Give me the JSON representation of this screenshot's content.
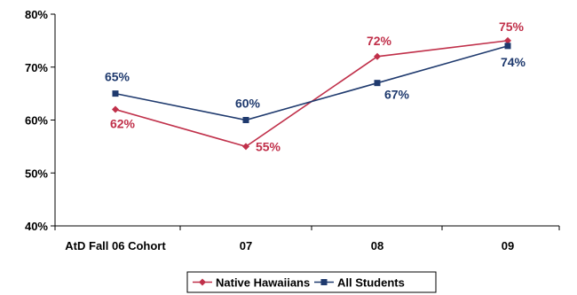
{
  "chart_data": {
    "type": "line",
    "categories": [
      "AtD Fall 06 Cohort",
      "07",
      "08",
      "09"
    ],
    "ylim": [
      40,
      80
    ],
    "yticks": [
      40,
      50,
      60,
      70,
      80
    ],
    "ytick_labels": [
      "40%",
      "50%",
      "60%",
      "70%",
      "80%"
    ],
    "grid": false,
    "legend_position": "bottom",
    "series": [
      {
        "name": "Native Hawaiians",
        "values": [
          62,
          55,
          72,
          75
        ],
        "labels": [
          "62%",
          "55%",
          "72%",
          "75%"
        ],
        "color": "#c0304a",
        "marker": "diamond"
      },
      {
        "name": "All Students",
        "values": [
          65,
          60,
          67,
          74
        ],
        "labels": [
          "65%",
          "60%",
          "67%",
          "74%"
        ],
        "color": "#1f3a6e",
        "marker": "square"
      }
    ]
  }
}
